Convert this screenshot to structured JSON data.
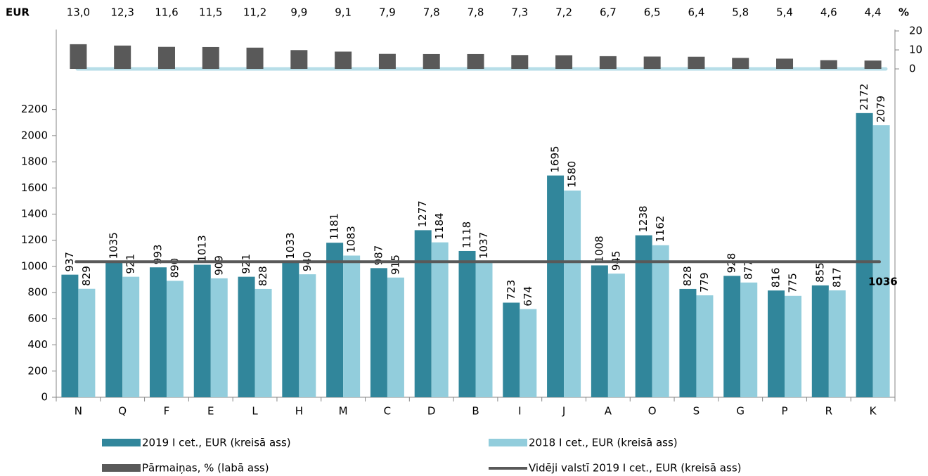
{
  "chart_data": {
    "type": "bar",
    "y_label": "EUR",
    "y2_label": "%",
    "categories": [
      "N",
      "Q",
      "F",
      "E",
      "L",
      "H",
      "M",
      "C",
      "D",
      "B",
      "I",
      "J",
      "A",
      "O",
      "S",
      "G",
      "P",
      "R",
      "K"
    ],
    "ylim": [
      0,
      2800
    ],
    "yticks": [
      0,
      200,
      400,
      600,
      800,
      1000,
      1200,
      1400,
      1600,
      1800,
      2000,
      2200
    ],
    "y2lim": [
      0,
      20
    ],
    "y2ticks": [
      0,
      10,
      20
    ],
    "series": [
      {
        "name": "2019 I cet., EUR (kreisā ass)",
        "color": "#31869b",
        "values": [
          937,
          1035,
          993,
          1013,
          921,
          1033,
          1181,
          987,
          1277,
          1118,
          723,
          1695,
          1008,
          1238,
          828,
          928,
          816,
          855,
          2172
        ]
      },
      {
        "name": "2018 I cet., EUR (kreisā ass)",
        "color": "#92cddc",
        "values": [
          829,
          921,
          890,
          909,
          828,
          940,
          1083,
          915,
          1184,
          1037,
          674,
          1580,
          945,
          1162,
          779,
          877,
          775,
          817,
          2079
        ]
      },
      {
        "name": "Pārmaiņas, %  (labā ass)",
        "color": "#595959",
        "axis": "y2",
        "values": [
          13.0,
          12.3,
          11.6,
          11.5,
          11.2,
          9.9,
          9.1,
          7.9,
          7.8,
          7.8,
          7.3,
          7.2,
          6.7,
          6.5,
          6.4,
          5.8,
          5.4,
          4.6,
          4.4
        ],
        "value_labels": [
          "13,0",
          "12,3",
          "11,6",
          "11,5",
          "11,2",
          "9,9",
          "9,1",
          "7,9",
          "7,8",
          "7,8",
          "7,3",
          "7,2",
          "6,7",
          "6,5",
          "6,4",
          "5,8",
          "5,4",
          "4,6",
          "4,4"
        ]
      },
      {
        "name": "Vidēji valstī 2019 I cet., EUR (kreisā ass)",
        "color": "#595959",
        "type": "line",
        "value": 1036
      }
    ]
  }
}
